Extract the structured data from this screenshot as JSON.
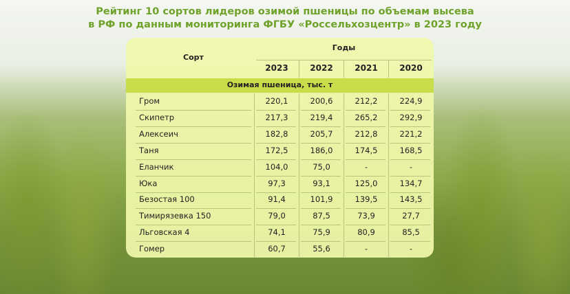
{
  "title_lines": [
    "Рейтинг 10 сортов лидеров озимой пшеницы по объемам высева",
    "в РФ по данным мониторинга ФГБУ «Россельхозцентр» в 2023 году"
  ],
  "table": {
    "variety_header": "Сорт",
    "years_header": "Годы",
    "years": [
      "2023",
      "2022",
      "2021",
      "2020"
    ],
    "section": "Озимая пшеница, тыс. т",
    "rows": [
      [
        "Гром",
        "220,1",
        "200,6",
        "212,2",
        "224,9"
      ],
      [
        "Скипетр",
        "217,3",
        "219,4",
        "265,2",
        "292,9"
      ],
      [
        "Алексеич",
        "182,8",
        "205,7",
        "212,8",
        "221,2"
      ],
      [
        "Таня",
        "172,5",
        "186,0",
        "174,5",
        "168,5"
      ],
      [
        "Еланчик",
        "104,0",
        "75,0",
        "-",
        "-"
      ],
      [
        "Юка",
        "97,3",
        "93,1",
        "125,0",
        "134,7"
      ],
      [
        "Безостая 100",
        "91,4",
        "101,9",
        "139,5",
        "143,5"
      ],
      [
        "Тимирязевка 150",
        "79,0",
        "87,5",
        "73,9",
        "27,7"
      ],
      [
        "Льговская 4",
        "74,1",
        "75,9",
        "80,9",
        "85,5"
      ],
      [
        "Гомер",
        "60,7",
        "55,6",
        "-",
        "-"
      ]
    ]
  }
}
